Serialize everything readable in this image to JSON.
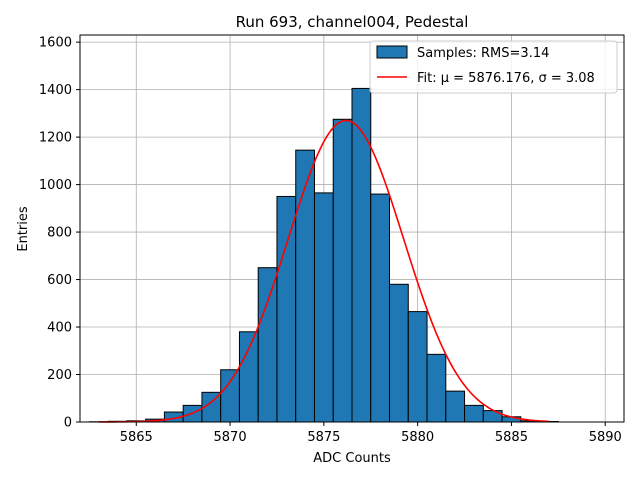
{
  "chart_data": {
    "type": "bar",
    "title": "Run 693, channel004, Pedestal",
    "xlabel": "ADC Counts",
    "ylabel": "Entries",
    "xlim": [
      5862,
      5891
    ],
    "ylim": [
      0,
      1630
    ],
    "xticks": [
      5865,
      5870,
      5875,
      5880,
      5885,
      5890
    ],
    "yticks": [
      0,
      200,
      400,
      600,
      800,
      1000,
      1200,
      1400,
      1600
    ],
    "grid": true,
    "legend_position": "top-right",
    "colors": {
      "bars": "#1f77b4",
      "bar_edge": "#000000",
      "fit": "#ff0000"
    },
    "bin_width": 1,
    "bins": [
      {
        "x": 5863,
        "count": 1
      },
      {
        "x": 5864,
        "count": 3
      },
      {
        "x": 5865,
        "count": 5
      },
      {
        "x": 5866,
        "count": 12
      },
      {
        "x": 5867,
        "count": 42
      },
      {
        "x": 5868,
        "count": 70
      },
      {
        "x": 5869,
        "count": 125
      },
      {
        "x": 5870,
        "count": 220
      },
      {
        "x": 5871,
        "count": 380
      },
      {
        "x": 5872,
        "count": 650
      },
      {
        "x": 5873,
        "count": 950
      },
      {
        "x": 5874,
        "count": 1145
      },
      {
        "x": 5875,
        "count": 965
      },
      {
        "x": 5876,
        "count": 1275
      },
      {
        "x": 5877,
        "count": 1405
      },
      {
        "x": 5878,
        "count": 960
      },
      {
        "x": 5879,
        "count": 580
      },
      {
        "x": 5880,
        "count": 465
      },
      {
        "x": 5881,
        "count": 285
      },
      {
        "x": 5882,
        "count": 130
      },
      {
        "x": 5883,
        "count": 70
      },
      {
        "x": 5884,
        "count": 48
      },
      {
        "x": 5885,
        "count": 22
      },
      {
        "x": 5886,
        "count": 5
      },
      {
        "x": 5887,
        "count": 2
      }
    ],
    "fit": {
      "mu": 5876.176,
      "sigma": 3.08,
      "amplitude": 1270,
      "x_range": [
        5863,
        5887
      ]
    },
    "series": [
      {
        "name": "Samples: RMS=3.14",
        "kind": "histogram"
      },
      {
        "name": "Fit: μ = 5876.176, σ = 3.08",
        "kind": "line"
      }
    ]
  }
}
